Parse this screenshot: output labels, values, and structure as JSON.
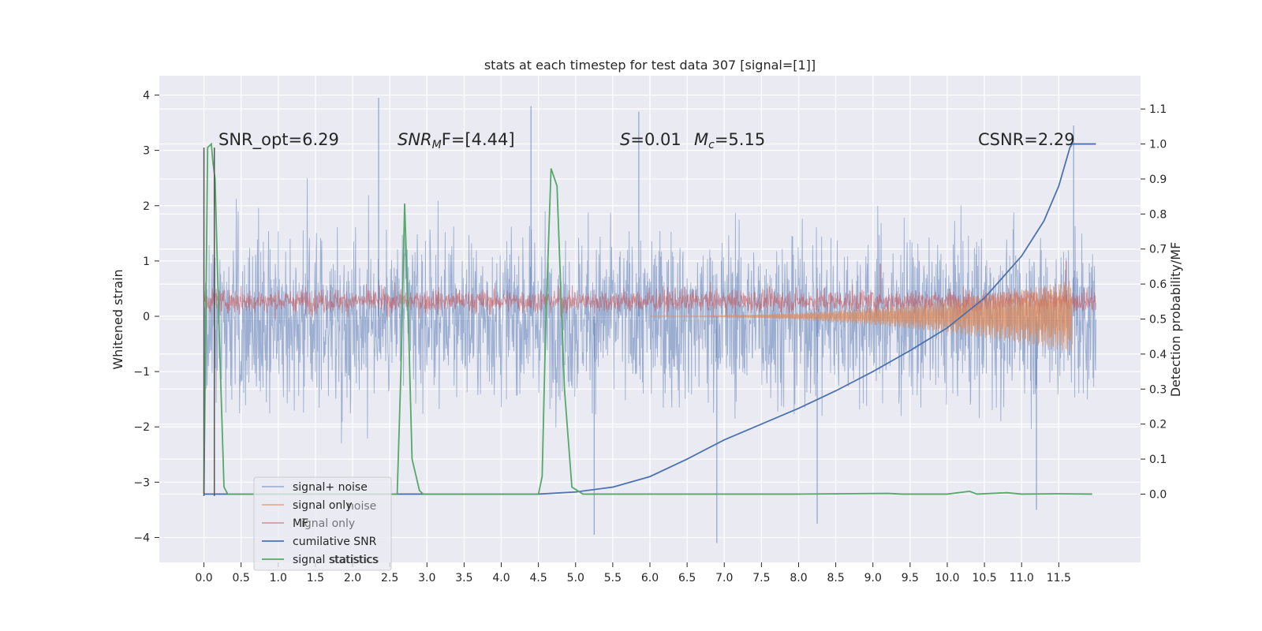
{
  "chart_data": {
    "type": "line",
    "title": "stats at each timestep for test data 307 [signal=[1]]",
    "xlabel": "",
    "ylabel_left": "Whitened strain",
    "ylabel_right": "Detection probability/MF",
    "xlim": [
      -0.6,
      12.6
    ],
    "ylim_left": [
      -4.45,
      4.35
    ],
    "ylim_right": [
      -0.195,
      1.195
    ],
    "x_ticks": [
      "0.0",
      "0.5",
      "1.0",
      "1.5",
      "2.0",
      "2.5",
      "3.0",
      "3.5",
      "4.0",
      "4.5",
      "5.0",
      "5.5",
      "6.0",
      "6.5",
      "7.0",
      "7.5",
      "8.0",
      "8.5",
      "9.0",
      "9.5",
      "10.0",
      "10.5",
      "11.0",
      "11.5"
    ],
    "y_left_ticks": [
      "4",
      "3",
      "2",
      "1",
      "0",
      "−1",
      "−2",
      "−3",
      "−4"
    ],
    "y_right_ticks": [
      "1.1",
      "1.0",
      "0.9",
      "0.8",
      "0.7",
      "0.6",
      "0.5",
      "0.4",
      "0.3",
      "0.2",
      "0.1",
      "0.0"
    ],
    "grid": true,
    "legend_position": "lower-left",
    "annotations": {
      "snr_opt": "SNR_opt=6.29",
      "snr_mf_symbol": "SNR",
      "snr_mf_sub": "M",
      "snr_mf_rest": "F=[4.44]",
      "s_symbol": "S",
      "s_rest": "=0.01",
      "mc_symbol": "M",
      "mc_sub": "c",
      "mc_rest": "=5.15",
      "csnr": "CSNR=2.29"
    },
    "legend": [
      {
        "label": "signal+ noise",
        "color": "#4c72b0"
      },
      {
        "label": "signal only",
        "color": "#dd8452"
      },
      {
        "label": "MF",
        "color": "#c44e52"
      },
      {
        "label": "cumilative SNR",
        "color": "#4c72b0"
      },
      {
        "label": "signal statistics",
        "color": "#55a868"
      }
    ],
    "legend_ghost": [
      "noise",
      "ignal only",
      "statistics"
    ],
    "series": [
      {
        "name": "signal+ noise",
        "axis": "left",
        "color": "#4c72b0",
        "kind": "noise",
        "x_range": [
          0,
          12
        ],
        "typical_range": [
          -1.9,
          1.9
        ],
        "peaks": [
          {
            "x": 2.35,
            "y": 3.95
          },
          {
            "x": 4.4,
            "y": 3.8
          },
          {
            "x": 5.85,
            "y": 3.7
          },
          {
            "x": 11.7,
            "y": 3.45
          },
          {
            "x": 6.9,
            "y": -4.1
          },
          {
            "x": 5.25,
            "y": -3.95
          },
          {
            "x": 8.25,
            "y": -3.75
          },
          {
            "x": 11.2,
            "y": -3.5
          }
        ]
      },
      {
        "name": "MF",
        "axis": "left",
        "color": "#c44e52",
        "kind": "noise",
        "x_range": [
          0,
          12
        ],
        "typical_range": [
          0.0,
          0.55
        ],
        "peaks": [
          {
            "x": 11.6,
            "y": 1.0
          },
          {
            "x": 9.1,
            "y": 0.95
          }
        ]
      },
      {
        "name": "signal only",
        "axis": "left",
        "color": "#dd8452",
        "kind": "chirp",
        "x_range": [
          6.0,
          11.68
        ],
        "end_amplitude": 0.65
      },
      {
        "name": "cumilative SNR",
        "axis": "right",
        "color": "#4c72b0",
        "x": [
          0.0,
          4.5,
          5.0,
          5.5,
          6.0,
          6.5,
          7.0,
          7.5,
          8.0,
          8.5,
          9.0,
          9.5,
          10.0,
          10.5,
          11.0,
          11.3,
          11.5,
          11.65,
          11.68,
          12.0
        ],
        "y": [
          0.0,
          0.0,
          0.006,
          0.02,
          0.05,
          0.1,
          0.155,
          0.2,
          0.245,
          0.295,
          0.35,
          0.41,
          0.475,
          0.56,
          0.68,
          0.78,
          0.88,
          0.99,
          1.0,
          1.0
        ]
      },
      {
        "name": "signal statistics",
        "axis": "right",
        "color": "#55a868",
        "x": [
          0.0,
          0.05,
          0.1,
          0.12,
          0.15,
          0.2,
          0.27,
          0.32,
          2.6,
          2.65,
          2.7,
          2.75,
          2.8,
          2.9,
          2.95,
          4.5,
          4.55,
          4.6,
          4.67,
          4.75,
          4.85,
          4.95,
          5.1,
          8.0,
          9.2,
          9.4,
          10.0,
          10.3,
          10.4,
          10.6,
          10.8,
          11.0,
          11.5,
          11.95
        ],
        "y": [
          0.0,
          0.99,
          1.0,
          0.95,
          0.9,
          0.5,
          0.02,
          0.0,
          0.0,
          0.35,
          0.83,
          0.5,
          0.1,
          0.01,
          0.0,
          0.0,
          0.05,
          0.5,
          0.93,
          0.88,
          0.3,
          0.02,
          0.0,
          0.0,
          0.002,
          0.0,
          0.0,
          0.008,
          0.0,
          0.002,
          0.004,
          0.0,
          0.001,
          0.0
        ]
      },
      {
        "name": "",
        "axis": "left",
        "color": "#555555",
        "kind": "vline",
        "x": [
          0.0,
          0.14
        ]
      }
    ]
  }
}
